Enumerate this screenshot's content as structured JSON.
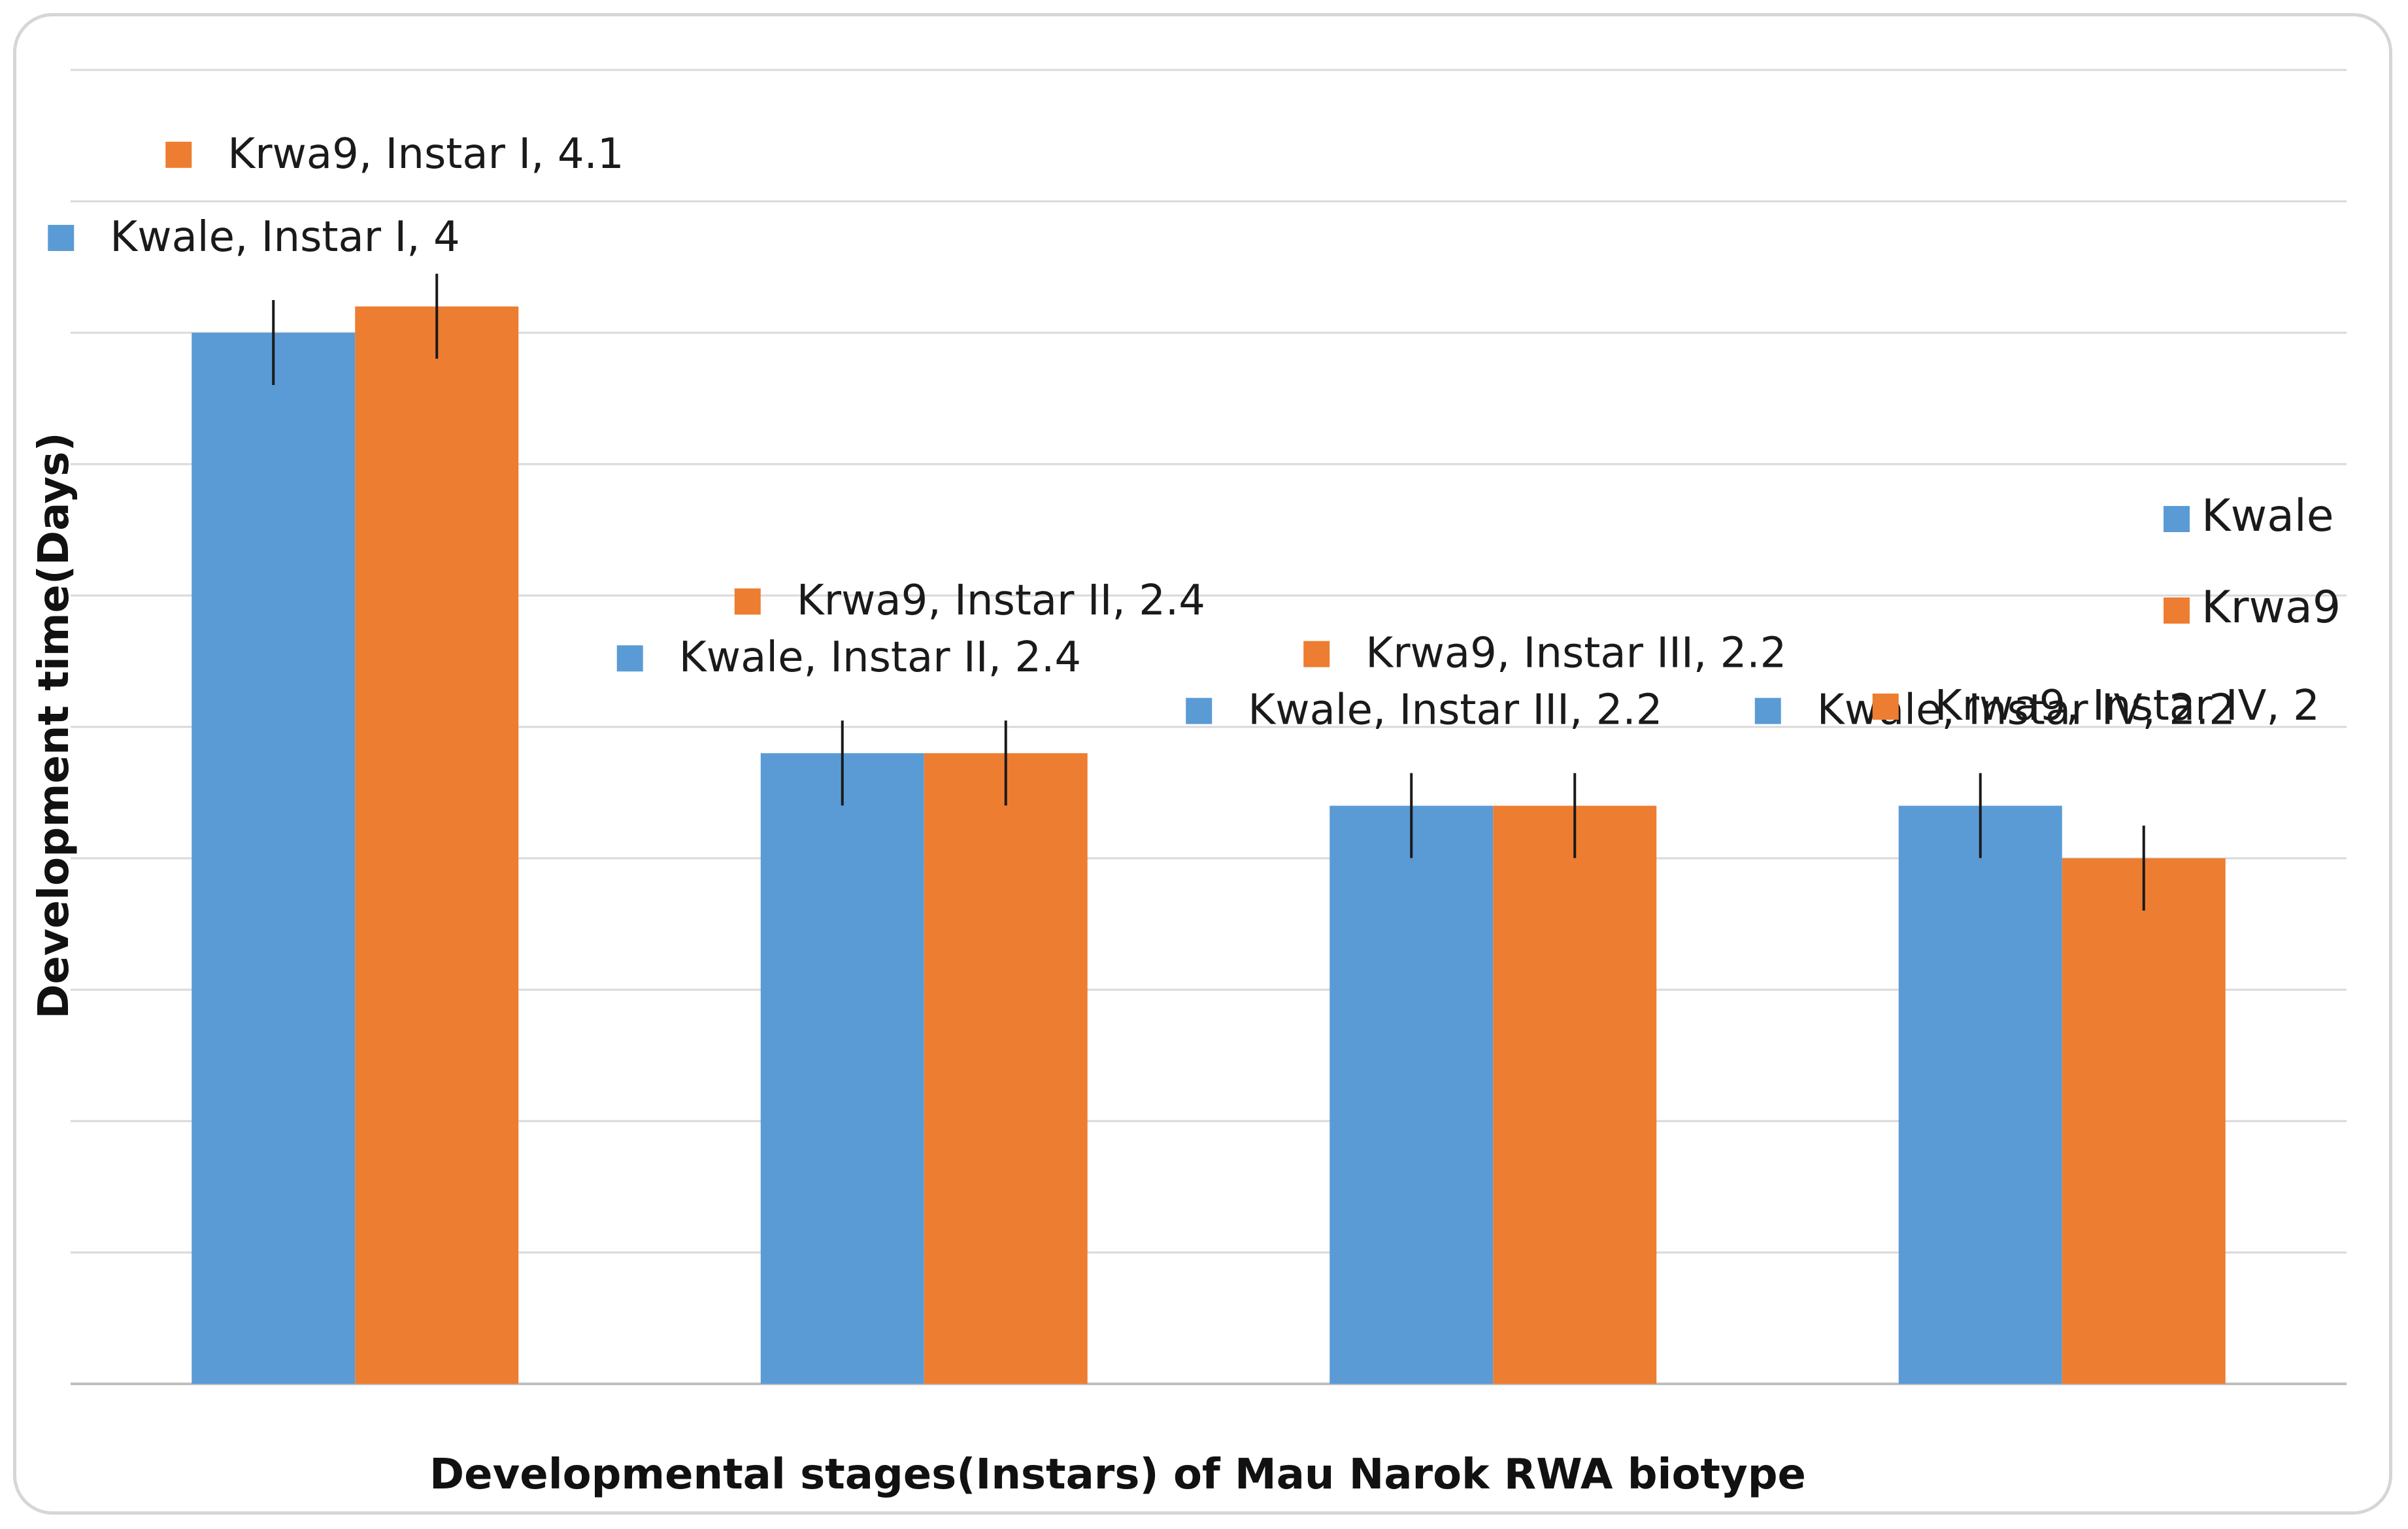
{
  "chart_data": {
    "type": "bar",
    "title": "",
    "xlabel": "Developmental stages(Instars) of Mau Narok RWA biotype",
    "ylabel": "Development time(Days)",
    "ylim": [
      0,
      5
    ],
    "grid": true,
    "legend_position": "right",
    "categories": [
      "Instar I",
      "Instar II",
      "Instar III",
      "Instar IV"
    ],
    "series": [
      {
        "name": "Kwale",
        "color": "#5b9bd5",
        "values": [
          4,
          2.4,
          2.2,
          2.2
        ]
      },
      {
        "name": "Krwa9",
        "color": "#ed7d31",
        "values": [
          4.1,
          2.4,
          2.2,
          2
        ]
      }
    ],
    "data_labels": [
      [
        "Kwale, Instar I, 4",
        "Kwale, Instar II, 2.4",
        "Kwale, Instar III, 2.2",
        "Kwale, Instar IV, 2.2"
      ],
      [
        "Krwa9, Instar I, 4.1",
        "Krwa9, Instar II, 2.4",
        "Krwa9, Instar III, 2.2",
        "Krwa9, Instar IV, 2"
      ]
    ],
    "legend": [
      "Kwale",
      "Krwa9"
    ]
  }
}
